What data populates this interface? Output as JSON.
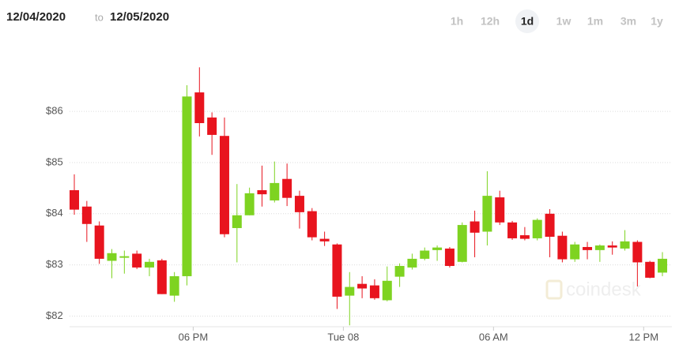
{
  "header": {
    "from": "12/04/2020",
    "to_word": "to",
    "to": "12/05/2020"
  },
  "range_buttons": [
    {
      "label": "1h"
    },
    {
      "label": "12h"
    },
    {
      "label": "1d",
      "selected": true
    },
    {
      "label": "1w"
    },
    {
      "label": "1m"
    },
    {
      "label": "3m"
    },
    {
      "label": "1y"
    }
  ],
  "chart_data": {
    "type": "candlestick",
    "watermark": "coindesk",
    "up_color": "#7ed321",
    "down_color": "#e8141e",
    "grid": true,
    "categories": [
      null,
      null,
      null,
      null,
      null,
      null,
      null,
      null,
      null,
      null,
      null,
      null,
      null,
      null,
      null,
      null,
      null,
      null,
      null,
      null,
      null,
      null,
      null,
      null,
      null,
      null,
      null,
      null,
      null,
      null,
      null,
      null,
      null,
      null,
      null,
      null,
      null,
      null,
      null,
      null,
      null,
      null,
      null,
      null,
      null,
      null,
      null,
      null
    ],
    "xticks": [
      {
        "value": 9.5,
        "label": "06 PM"
      },
      {
        "value": 21.5,
        "label": "Tue 08"
      },
      {
        "value": 33.5,
        "label": "06 AM"
      },
      {
        "value": 45.5,
        "label": "12 PM"
      }
    ],
    "ylim": [
      81.7,
      87.25
    ],
    "yticks": [
      {
        "value": 82,
        "label": "$82"
      },
      {
        "value": 83,
        "label": "$83"
      },
      {
        "value": 84,
        "label": "$84"
      },
      {
        "value": 85,
        "label": "$85"
      },
      {
        "value": 86,
        "label": "$86"
      }
    ],
    "open": [
      84.46,
      84.14,
      83.77,
      83.08,
      83.14,
      83.22,
      82.95,
      83.09,
      82.4,
      82.78,
      86.37,
      85.88,
      85.52,
      83.72,
      83.97,
      84.46,
      84.26,
      84.68,
      84.35,
      84.05,
      83.51,
      83.4,
      82.4,
      82.63,
      82.6,
      82.31,
      82.77,
      82.95,
      83.12,
      83.29,
      83.32,
      83.06,
      83.85,
      83.65,
      84.32,
      83.83,
      83.58,
      83.52,
      84.0,
      83.57,
      83.11,
      83.35,
      83.29,
      83.38,
      83.32,
      83.45,
      83.06,
      82.85
    ],
    "high": [
      84.77,
      84.25,
      83.85,
      83.31,
      83.28,
      83.28,
      83.12,
      83.12,
      82.86,
      86.51,
      86.86,
      85.98,
      85.88,
      84.58,
      84.51,
      84.94,
      85.02,
      84.98,
      84.45,
      84.11,
      83.65,
      83.42,
      82.86,
      82.78,
      82.72,
      82.97,
      83.03,
      83.22,
      83.34,
      83.38,
      83.35,
      83.83,
      84.06,
      84.83,
      84.45,
      83.86,
      83.74,
      83.91,
      84.09,
      83.65,
      83.45,
      83.45,
      83.4,
      83.46,
      83.68,
      83.48,
      83.08,
      83.25
    ],
    "low": [
      83.98,
      83.45,
      83.02,
      82.74,
      82.83,
      82.92,
      82.78,
      82.43,
      82.28,
      82.6,
      85.51,
      85.15,
      83.54,
      83.05,
      83.97,
      84.14,
      84.22,
      84.15,
      83.71,
      83.48,
      83.37,
      82.14,
      81.82,
      82.35,
      82.32,
      82.29,
      82.57,
      82.91,
      83.09,
      83.08,
      82.95,
      83.05,
      83.15,
      83.38,
      83.78,
      83.49,
      83.48,
      83.48,
      83.15,
      83.05,
      83.06,
      83.11,
      83.06,
      83.2,
      83.28,
      82.58,
      82.74,
      82.78
    ],
    "close": [
      84.08,
      83.8,
      83.12,
      83.23,
      83.17,
      82.95,
      83.06,
      82.43,
      82.78,
      86.29,
      85.77,
      85.54,
      83.6,
      83.97,
      84.4,
      84.38,
      84.6,
      84.31,
      84.03,
      83.54,
      83.46,
      82.38,
      82.57,
      82.54,
      82.35,
      82.69,
      82.98,
      83.12,
      83.28,
      83.34,
      82.98,
      83.78,
      83.63,
      84.35,
      83.83,
      83.52,
      83.51,
      83.88,
      83.55,
      83.11,
      83.4,
      83.29,
      83.38,
      83.34,
      83.46,
      83.05,
      82.75,
      83.12
    ]
  }
}
